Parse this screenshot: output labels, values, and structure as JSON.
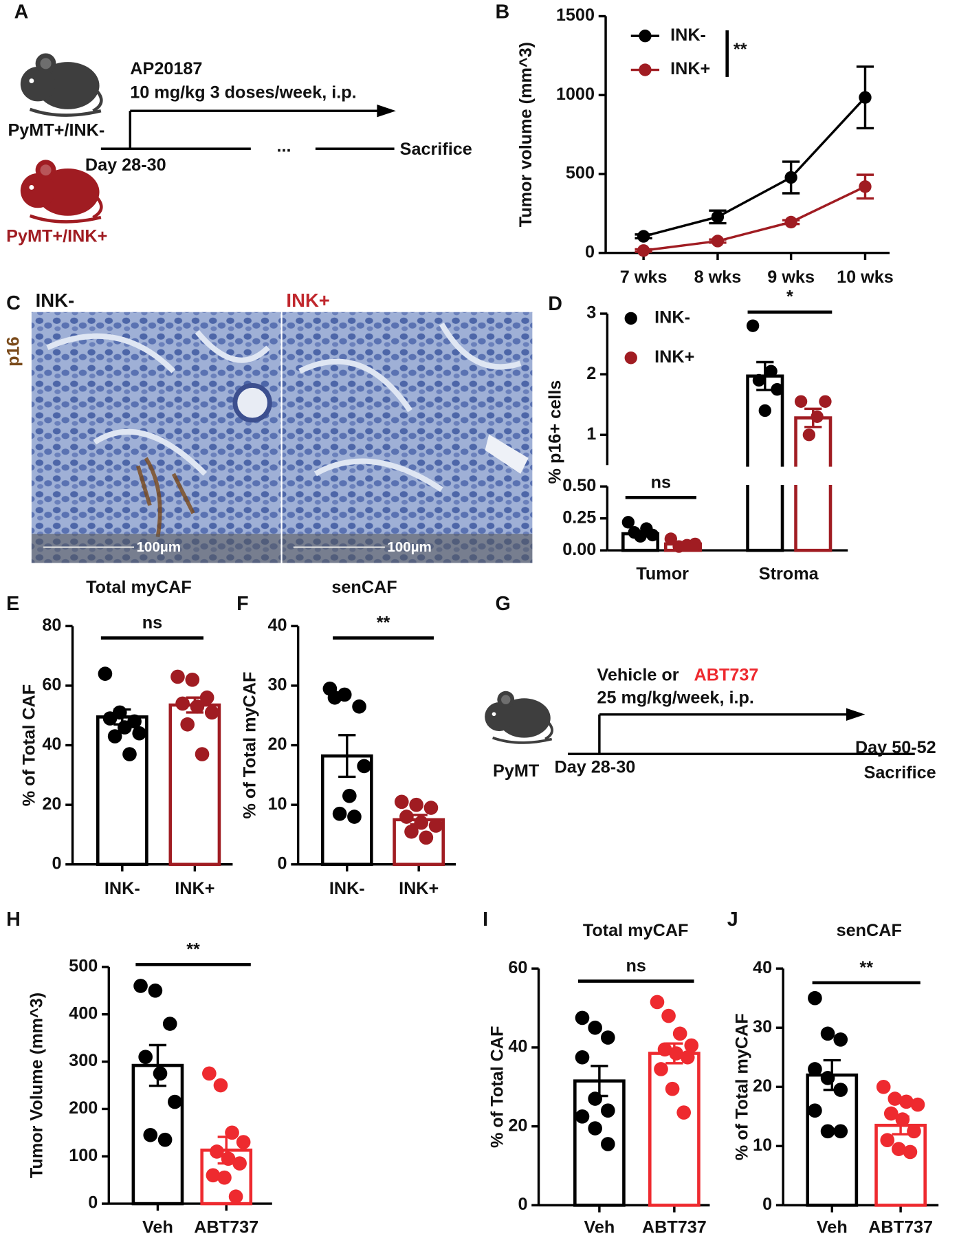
{
  "panel_a": {
    "label": "A",
    "drug": "AP20187",
    "dose": "10 mg/kg 3 doses/week, i.p.",
    "group_1": "PyMT+/INK-",
    "group_2": "PyMT+/INK+",
    "start": "Day 28-30",
    "ellipsis": "...",
    "end": "Sacrifice"
  },
  "panel_c": {
    "label": "C",
    "left": "INK-",
    "right": "INK+",
    "stain": "p16",
    "scale_left": "100µm",
    "scale_right": "100µm"
  },
  "panel_g": {
    "label": "G",
    "treatment_prefix": "Vehicle or",
    "treatment_drug": "ABT737",
    "dose": "25 mg/kg/week, i.p.",
    "model": "PyMT",
    "start": "Day 28-30",
    "end_day": "Day 50-52",
    "end": "Sacrifice"
  },
  "chart_data": [
    {
      "panel": "B",
      "type": "line",
      "ylabel": "Tumor volume (mm^3)",
      "categories": [
        "7 wks",
        "8 wks",
        "9 wks",
        "10 wks"
      ],
      "ylim": [
        0,
        1500
      ],
      "yticks": [
        0,
        500,
        1000,
        1500
      ],
      "legend": "upper left",
      "annotation": "**",
      "series": [
        {
          "name": "INK-",
          "color": "#000000",
          "values": [
            105,
            228,
            478,
            985
          ],
          "errors": [
            12,
            40,
            100,
            195
          ]
        },
        {
          "name": "INK+",
          "color": "#a01c22",
          "values": [
            15,
            75,
            195,
            420
          ],
          "errors": [
            8,
            10,
            12,
            75
          ]
        }
      ]
    },
    {
      "panel": "D",
      "type": "grouped_bar",
      "ylabel": "% p16+ cells",
      "categories": [
        "Tumor",
        "Stroma"
      ],
      "legend": "upper left",
      "annotations": [
        "ns",
        "*"
      ],
      "y_segments": [
        {
          "ylim": [
            0,
            0.5
          ],
          "yticks": [
            {
              "value": 0,
              "label": "0.00"
            },
            {
              "value": 0.25,
              "label": "0.25"
            },
            {
              "value": 0.5,
              "label": "0.50"
            }
          ]
        },
        {
          "ylim": [
            0.5,
            3
          ],
          "yticks": [
            1,
            2,
            3
          ]
        }
      ],
      "series": [
        {
          "name": "INK-",
          "color": "#000000",
          "values": [
            0.13,
            1.97
          ],
          "errors": [
            0.02,
            0.23
          ],
          "points": [
            [
              0.22,
              0.17,
              0.14,
              0.12,
              0.11
            ],
            [
              2.8,
              2.05,
              1.9,
              1.75,
              1.4
            ]
          ]
        },
        {
          "name": "INK+",
          "color": "#a01c22",
          "values": [
            0.05,
            1.28
          ],
          "errors": [
            0.015,
            0.15
          ],
          "points": [
            [
              0.09,
              0.05,
              0.04,
              0.03
            ],
            [
              1.55,
              1.55,
              1.3,
              1.0
            ]
          ]
        }
      ]
    },
    {
      "panel": "E",
      "type": "bar",
      "title": "Total myCAF",
      "ylabel": "% of Total CAF",
      "categories": [
        "INK-",
        "INK+"
      ],
      "colors": [
        "#000000",
        "#a01c22"
      ],
      "values": [
        49.5,
        53.5
      ],
      "errors": [
        2.5,
        2.5
      ],
      "points": [
        [
          64,
          51,
          48,
          49,
          46,
          44,
          43,
          37
        ],
        [
          63,
          62,
          56,
          54,
          53,
          51,
          47,
          37
        ]
      ],
      "ylim": [
        0,
        80
      ],
      "yticks": [
        0,
        20,
        40,
        60,
        80
      ],
      "annotation": "ns"
    },
    {
      "panel": "F",
      "type": "bar",
      "title": "senCAF",
      "ylabel": "% of Total myCAF",
      "categories": [
        "INK-",
        "INK+"
      ],
      "colors": [
        "#000000",
        "#a01c22"
      ],
      "values": [
        18.2,
        7.5
      ],
      "errors": [
        3.5,
        0.8
      ],
      "points": [
        [
          29.5,
          28.5,
          26.5,
          28,
          11.5,
          16.5,
          8.5,
          8
        ],
        [
          10.5,
          10,
          9.5,
          8,
          7,
          6.5,
          5.5,
          4.5
        ]
      ],
      "ylim": [
        0,
        40
      ],
      "yticks": [
        0,
        10,
        20,
        30,
        40
      ],
      "annotation": "**"
    },
    {
      "panel": "H",
      "type": "bar",
      "ylabel": "Tumor Volume (mm^3)",
      "categories": [
        "Veh",
        "ABT737"
      ],
      "colors": [
        "#000000",
        "#ee2a2f"
      ],
      "values": [
        292,
        113
      ],
      "errors": [
        43,
        28
      ],
      "points": [
        [
          460,
          450,
          380,
          310,
          275,
          215,
          145,
          135
        ],
        [
          275,
          250,
          150,
          130,
          110,
          95,
          85,
          60,
          55,
          15
        ]
      ],
      "ylim": [
        0,
        500
      ],
      "yticks": [
        0,
        100,
        200,
        300,
        400,
        500
      ],
      "annotation": "**"
    },
    {
      "panel": "I",
      "type": "bar",
      "title": "Total myCAF",
      "ylabel": "% of Total CAF",
      "categories": [
        "Veh",
        "ABT737"
      ],
      "colors": [
        "#000000",
        "#ee2a2f"
      ],
      "values": [
        31.5,
        38.5
      ],
      "errors": [
        3.8,
        2.5
      ],
      "points": [
        [
          47.5,
          45,
          42.5,
          37.5,
          27,
          24,
          22.5,
          19.5,
          15.5
        ],
        [
          51.5,
          48,
          43.5,
          40.5,
          39.5,
          38.5,
          37.5,
          34.5,
          29.5,
          23.5
        ]
      ],
      "ylim": [
        0,
        60
      ],
      "yticks": [
        0,
        20,
        40,
        60
      ],
      "annotation": "ns"
    },
    {
      "panel": "J",
      "type": "bar",
      "title": "senCAF",
      "ylabel": "% of Total myCAF",
      "categories": [
        "Veh",
        "ABT737"
      ],
      "colors": [
        "#000000",
        "#ee2a2f"
      ],
      "values": [
        22,
        13.5
      ],
      "errors": [
        2.5,
        1.5
      ],
      "points": [
        [
          35,
          29,
          28,
          23,
          21.5,
          19.5,
          16,
          12.5,
          12.5
        ],
        [
          20,
          18,
          17.5,
          17,
          15.5,
          14.5,
          12.5,
          11,
          9.5,
          9
        ]
      ],
      "ylim": [
        0,
        40
      ],
      "yticks": [
        0,
        10,
        20,
        30,
        40
      ],
      "annotation": "**"
    }
  ]
}
